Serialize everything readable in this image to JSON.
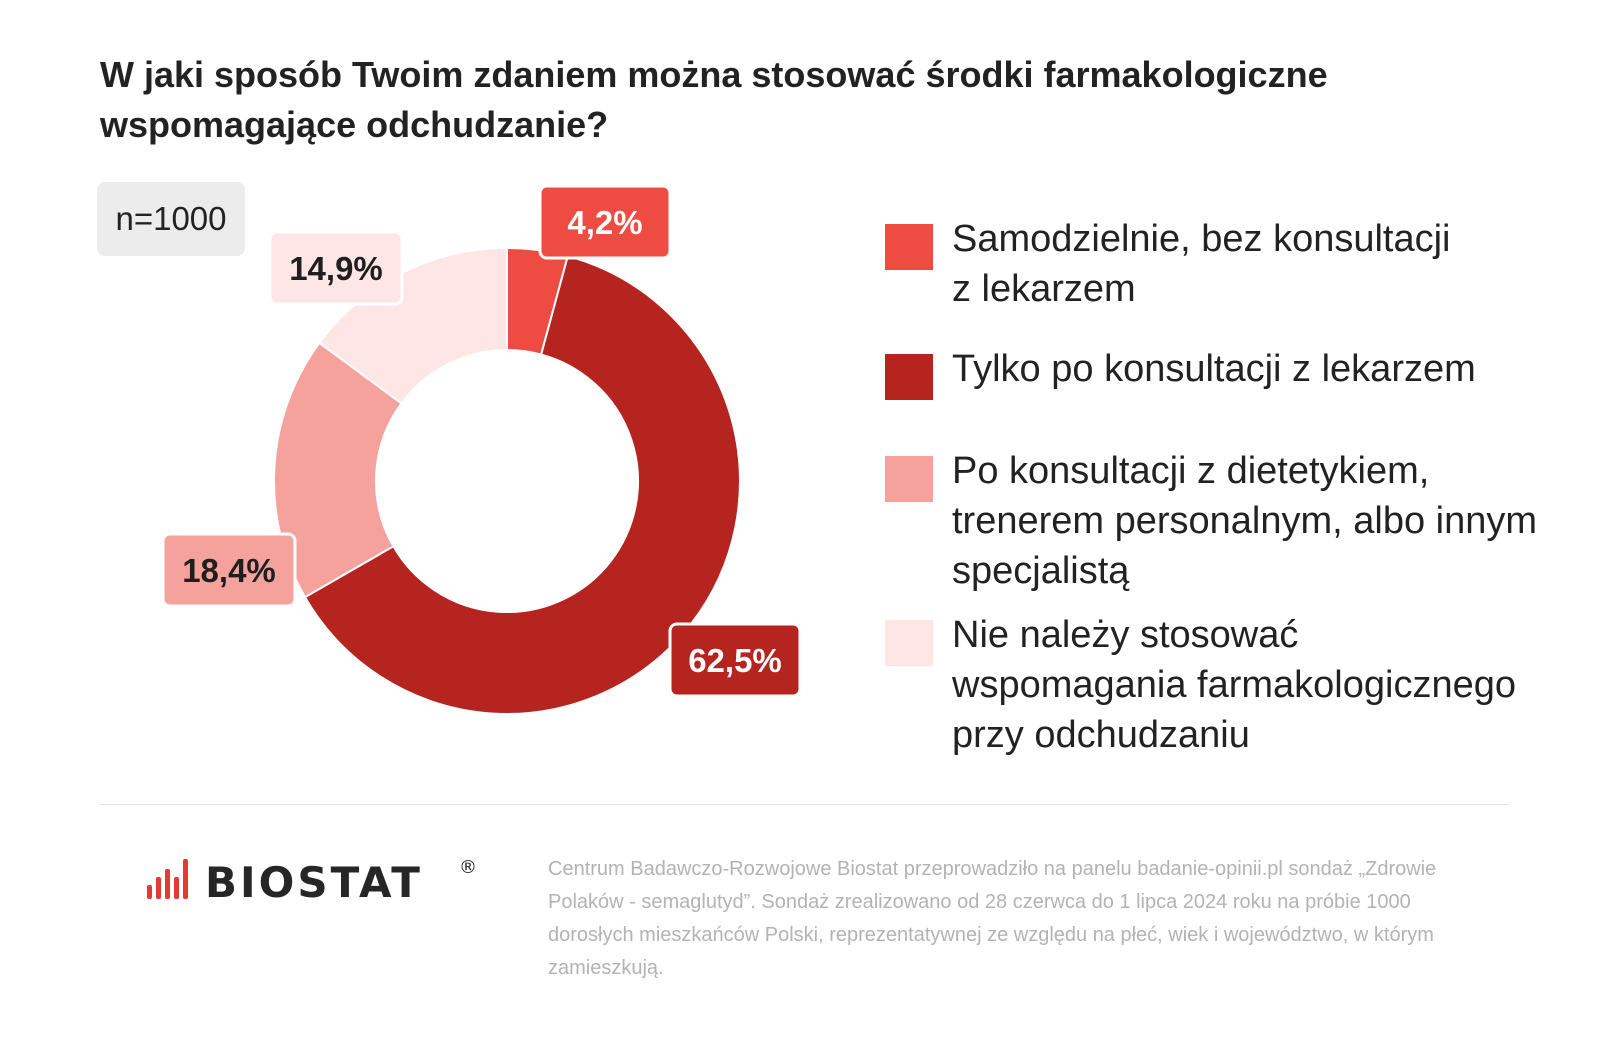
{
  "title": "W jaki sposób Twoim zdaniem można stosować środki farmakologiczne wspomagające odchudzanie?",
  "sample": "n=1000",
  "chart_data": {
    "type": "pie",
    "title": "W jaki sposób Twoim zdaniem można stosować środki farmakologiczne wspomagające odchudzanie?",
    "donut": true,
    "series": [
      {
        "name": "Samodzielnie, bez konsultacji z lekarzem",
        "value": 4.2,
        "label": "4,2%",
        "color": "#ee4b43",
        "label_color": "#ffffff"
      },
      {
        "name": "Tylko po konsultacji z lekarzem",
        "value": 62.5,
        "label": "62,5%",
        "color": "#b5241f",
        "label_color": "#ffffff"
      },
      {
        "name": "Po konsultacji z dietetykiem, trenerem personalnym, albo innym specjalistą",
        "value": 18.4,
        "label": "18,4%",
        "color": "#f5a19c",
        "label_color": "#1f1f1f"
      },
      {
        "name": "Nie należy stosować wspomagania farmakologicznego przy odchudzaniu",
        "value": 14.9,
        "label": "14,9%",
        "color": "#fde6e5",
        "label_color": "#1f1f1f"
      }
    ],
    "legend_position": "right"
  },
  "legend": [
    {
      "label": "Samodzielnie, bez konsultacji z lekarzem"
    },
    {
      "label": "Tylko po konsultacji z lekarzem"
    },
    {
      "label": "Po konsultacji z dietetykiem, trenerem personalnym, albo innym specjalistą"
    },
    {
      "label": "Nie należy stosować wspomagania farmakologicznego przy odchudzaniu"
    }
  ],
  "logo": {
    "text": "BIOSTAT",
    "mark": "®",
    "color": "#e53935"
  },
  "footnote": "Centrum Badawczo-Rozwojowe Biostat przeprowadziło na panelu badanie-opinii.pl sondaż „Zdrowie Polaków - semaglutyd”. Sondaż zrealizowano od 28 czerwca do 1 lipca 2024 roku na próbie 1000 dorosłych mieszkańców Polski, reprezentatywnej ze względu na płeć, wiek i województwo, w którym zamieszkują."
}
